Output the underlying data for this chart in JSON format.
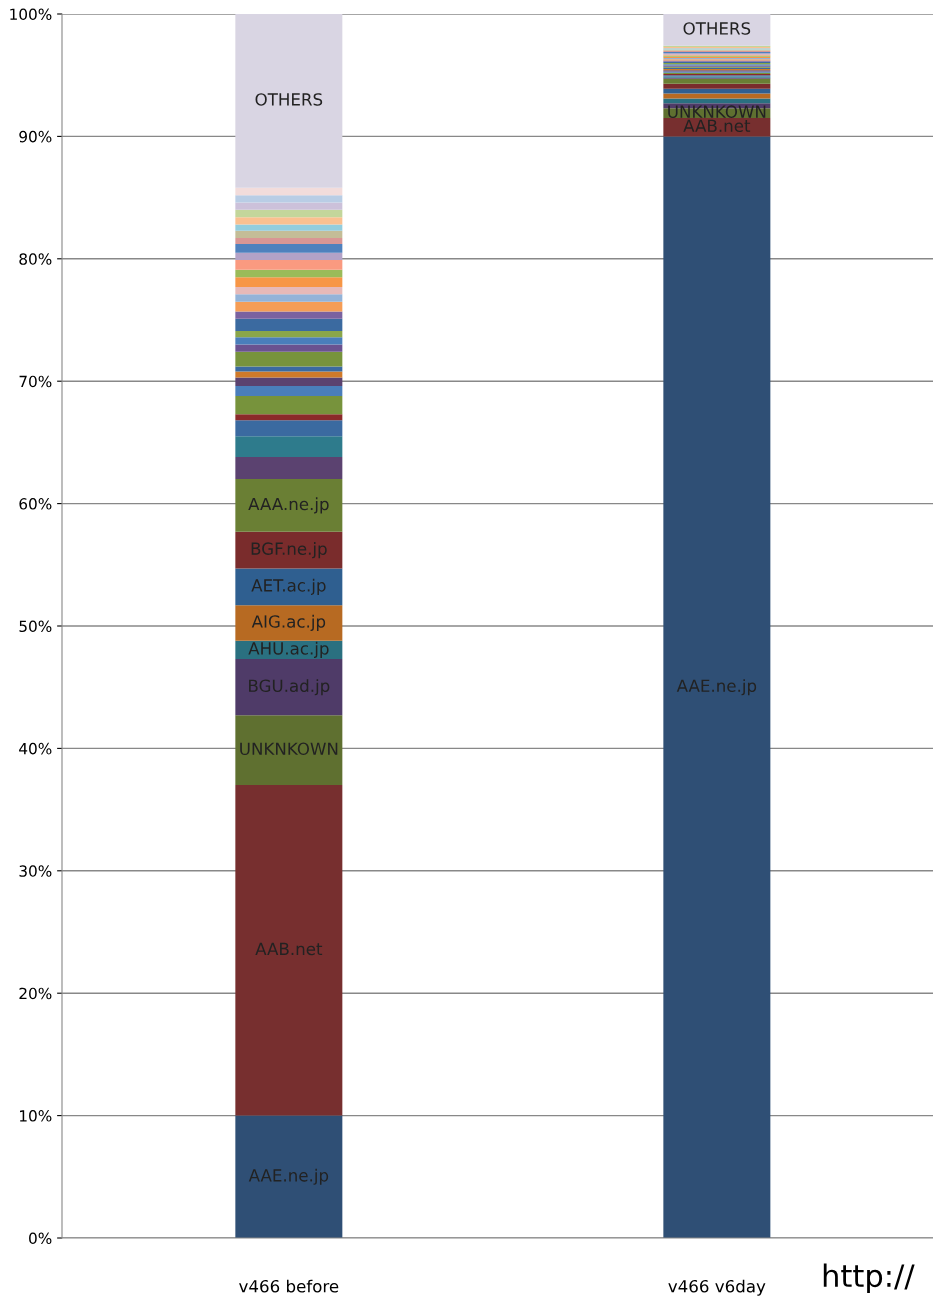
{
  "chart_data": {
    "type": "bar",
    "stacked": true,
    "categories": [
      "v466 before",
      "v466 v6day"
    ],
    "ylim": [
      0,
      100
    ],
    "yticks": [
      {
        "value": 0,
        "label": "0%"
      },
      {
        "value": 10,
        "label": "10%"
      },
      {
        "value": 20,
        "label": "20%"
      },
      {
        "value": 30,
        "label": "30%"
      },
      {
        "value": 40,
        "label": "40%"
      },
      {
        "value": 50,
        "label": "50%"
      },
      {
        "value": 60,
        "label": "60%"
      },
      {
        "value": 70,
        "label": "70%"
      },
      {
        "value": 80,
        "label": "80%"
      },
      {
        "value": 90,
        "label": "90%"
      },
      {
        "value": 100,
        "label": "100%"
      }
    ],
    "grid": "y",
    "legend": false,
    "annotations": [
      "http://"
    ],
    "series": [
      {
        "name": "AAE.ne.jp",
        "color": "#2f4f75",
        "values": [
          10,
          90
        ]
      },
      {
        "name": "AAB.net",
        "color": "#772f2f",
        "values": [
          27,
          1.5
        ]
      },
      {
        "name": "UNKNKOWN",
        "color": "#5f7030",
        "values": [
          5.7,
          0.8
        ]
      },
      {
        "name": "BGU.ad.jp",
        "color": "#4f3b68",
        "values": [
          4.6,
          0.4
        ]
      },
      {
        "name": "AHU.ac.jp",
        "color": "#2a7080",
        "values": [
          1.5,
          0.4
        ]
      },
      {
        "name": "AIG.ac.jp",
        "color": "#b76a22",
        "values": [
          2.9,
          0.4
        ]
      },
      {
        "name": "AET.ac.jp",
        "color": "#2f5f90",
        "values": [
          3.0,
          0.4
        ]
      },
      {
        "name": "BGF.ne.jp",
        "color": "#7a2c2c",
        "values": [
          3.0,
          0.4
        ]
      },
      {
        "name": "AAA.ne.jp",
        "color": "#6a7f34",
        "values": [
          4.3,
          0.4
        ]
      },
      {
        "color": "#5b4270",
        "values": [
          1.8,
          0.1
        ]
      },
      {
        "color": "#2e7b8c",
        "values": [
          1.7,
          0.1
        ]
      },
      {
        "color": "#3b6aa0",
        "values": [
          1.3,
          0.1
        ]
      },
      {
        "color": "#8b2a2a",
        "values": [
          0.5,
          0.1
        ]
      },
      {
        "color": "#77933c",
        "values": [
          1.5,
          0.1
        ]
      },
      {
        "color": "#4a7ebb",
        "values": [
          0.8,
          0.1
        ]
      },
      {
        "color": "#5b4270",
        "values": [
          0.7,
          0.1
        ]
      },
      {
        "color": "#d07a2a",
        "values": [
          0.5,
          0.1
        ]
      },
      {
        "color": "#3b6aa0",
        "values": [
          0.4,
          0.1
        ]
      },
      {
        "color": "#77933c",
        "values": [
          1.2,
          0.1
        ]
      },
      {
        "color": "#6a5290",
        "values": [
          0.6,
          0.1
        ]
      },
      {
        "color": "#4a7ebb",
        "values": [
          0.6,
          0.1
        ]
      },
      {
        "color": "#8aa64a",
        "values": [
          0.5,
          0.1
        ]
      },
      {
        "color": "#3b6aa0",
        "values": [
          1.0,
          0.1
        ]
      },
      {
        "color": "#7a62a0",
        "values": [
          0.6,
          0.1
        ]
      },
      {
        "color": "#f59d56",
        "values": [
          0.8,
          0.1
        ]
      },
      {
        "color": "#93b3d8",
        "values": [
          0.6,
          0.1
        ]
      },
      {
        "color": "#e6b9b8",
        "values": [
          0.6,
          null
        ]
      },
      {
        "color": "#f79646",
        "values": [
          0.8,
          0.1
        ]
      },
      {
        "color": "#9bbb59",
        "values": [
          0.6,
          0.1
        ]
      },
      {
        "color": "#fa9a80",
        "values": [
          0.8,
          0.1
        ]
      },
      {
        "color": "#b3a2c7",
        "values": [
          0.6,
          0.1
        ]
      },
      {
        "color": "#4f81bd",
        "values": [
          0.7,
          0.1
        ]
      },
      {
        "color": "#d99694",
        "values": [
          0.5,
          0.1
        ]
      },
      {
        "color": "#c4bd97",
        "values": [
          0.6,
          0.1
        ]
      },
      {
        "color": "#93cddd",
        "values": [
          0.5,
          0.1
        ]
      },
      {
        "color": "#fac090",
        "values": [
          0.6,
          0.1
        ]
      },
      {
        "color": "#c3d69b",
        "values": [
          0.6,
          0.1
        ]
      },
      {
        "color": "#ccc1da",
        "values": [
          0.6,
          null
        ]
      },
      {
        "color": "#b9cde5",
        "values": [
          0.6,
          null
        ]
      },
      {
        "color": "#f2dcdb",
        "values": [
          0.6,
          null
        ]
      },
      {
        "name": "OTHERS",
        "color": "#d9d5e3",
        "values": [
          14.2,
          2.6
        ]
      }
    ]
  }
}
